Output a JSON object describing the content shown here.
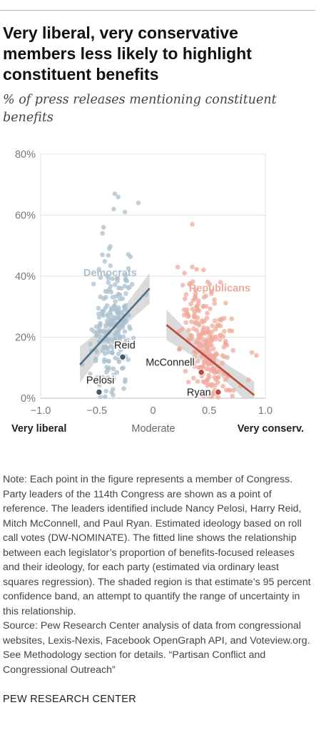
{
  "title": "Very liberal, very conservative members less likely to highlight constituent benefits",
  "subtitle": "% of press releases mentioning constituent benefits",
  "note": "Note: Each point in the figure represents a member of Congress. Party leaders of the 114th Congress are shown as a point of reference. The leaders identified include Nancy Pelosi, Harry Reid, Mitch McConnell, and Paul Ryan. Estimated ideology based on roll call votes (DW-NOMINATE). The fitted line shows the relationship between each legislator’s proportion of benefits-focused releases and their ideology, for each party (estimated via ordinary least squares regression). The shaded region is that estimate’s 95 percent confidence band, an attempt to quantify the range of uncertainty in this relationship.",
  "source": "Source: Pew Research Center analysis of data from congressional websites, Lexis-Nexis, Facebook OpenGraph API, and Voteview.org. See Methodology section for details. “Partisan Conflict and Congressional Outreach”",
  "credit": "PEW RESEARCH CENTER",
  "colors": {
    "democrat_point": "#a9c0cf",
    "democrat_line": "#4f6f86",
    "republican_point": "#f0a99b",
    "republican_line": "#b84a3b",
    "band": "#d2d2d2",
    "leader_dem": "#3f5a70",
    "leader_rep": "#b84a3b"
  },
  "chart_data": {
    "type": "scatter",
    "xlim": [
      -1.0,
      1.0
    ],
    "ylim": [
      0,
      80
    ],
    "x_ticks": [
      -1.0,
      -0.5,
      0,
      0.5,
      1.0
    ],
    "x_tick_labels": [
      "−1.0",
      "−0.5",
      "0",
      "0.5",
      "1.0"
    ],
    "y_ticks": [
      0,
      20,
      40,
      60,
      80
    ],
    "y_tick_labels": [
      "0%",
      "20%",
      "40%",
      "60%",
      "80%"
    ],
    "x_anchor_labels": [
      {
        "x": -0.85,
        "text": "Very liberal",
        "bold": true
      },
      {
        "x": 0.0,
        "text": "Moderate",
        "bold": false
      },
      {
        "x": 0.85,
        "text": "Very conserv.",
        "bold": true
      }
    ],
    "grid": "horizontal",
    "series": [
      {
        "name": "Democrats",
        "label_at": [
          -0.62,
          40
        ],
        "fit": {
          "x0": -0.65,
          "y0": 11,
          "x1": -0.03,
          "y1": 36
        },
        "band_width": [
          6,
          2.5,
          5
        ],
        "cloud": {
          "x_range": [
            -0.68,
            -0.06
          ],
          "x_mode": -0.35,
          "y_at_x0": 11,
          "y_at_x1": 36,
          "spread": 11,
          "n": 210,
          "seed": 7
        }
      },
      {
        "name": "Republicans",
        "label_at": [
          0.32,
          35
        ],
        "fit": {
          "x0": 0.12,
          "y0": 24,
          "x1": 0.9,
          "y1": 1
        },
        "band_width": [
          5,
          2,
          4.5
        ],
        "cloud": {
          "x_range": [
            0.12,
            0.92
          ],
          "x_mode": 0.4,
          "y_at_x0": 28,
          "y_at_x1": 3,
          "spread": 9,
          "n": 240,
          "seed": 19
        }
      }
    ],
    "extra_points": {
      "Democrats": [
        [
          -0.34,
          67
        ],
        [
          -0.31,
          66
        ],
        [
          -0.13,
          64
        ],
        [
          -0.35,
          62
        ],
        [
          -0.25,
          61
        ],
        [
          -0.44,
          56
        ],
        [
          -0.45,
          54
        ],
        [
          -0.39,
          49
        ],
        [
          -0.45,
          47
        ],
        [
          -0.06,
          34
        ],
        [
          -0.63,
          11
        ],
        [
          -0.56,
          8
        ],
        [
          -0.48,
          5
        ]
      ],
      "Republicans": [
        [
          0.35,
          57
        ],
        [
          0.22,
          43
        ],
        [
          0.35,
          43
        ],
        [
          0.45,
          42
        ],
        [
          0.28,
          41
        ],
        [
          0.6,
          38
        ],
        [
          0.52,
          35
        ],
        [
          0.7,
          26
        ],
        [
          0.88,
          15
        ],
        [
          0.92,
          14
        ],
        [
          0.78,
          4
        ],
        [
          0.85,
          6
        ]
      ]
    },
    "leaders": [
      {
        "name": "Pelosi",
        "party": "Democrats",
        "x": -0.48,
        "y": 2,
        "label_offset": [
          -18,
          -12
        ]
      },
      {
        "name": "Reid",
        "party": "Democrats",
        "x": -0.27,
        "y": 13.5,
        "label_offset": [
          -12,
          -12
        ]
      },
      {
        "name": "McConnell",
        "party": "Republicans",
        "x": 0.43,
        "y": 8.5,
        "label_offset": [
          -78,
          -9
        ]
      },
      {
        "name": "Ryan",
        "party": "Republicans",
        "x": 0.58,
        "y": 2,
        "label_offset": [
          -44,
          5
        ]
      }
    ]
  }
}
